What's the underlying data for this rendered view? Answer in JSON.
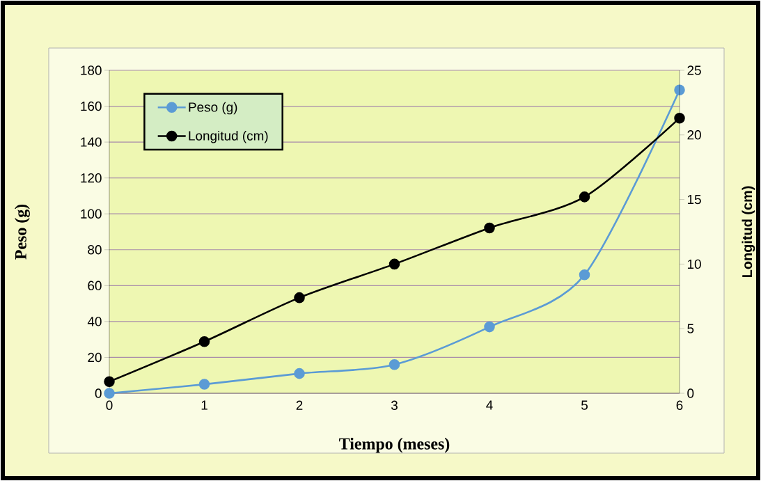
{
  "chart_data": {
    "type": "line",
    "xlabel": "Tiempo (meses)",
    "ylabel": "Peso (g)",
    "y2label": "Longitud (cm)",
    "x": [
      0,
      1,
      2,
      3,
      4,
      5,
      6
    ],
    "xlim": [
      0,
      6
    ],
    "xticks": [
      0,
      1,
      2,
      3,
      4,
      5,
      6
    ],
    "ylim": [
      0,
      180
    ],
    "yticks": [
      0,
      20,
      40,
      60,
      80,
      100,
      120,
      140,
      160,
      180
    ],
    "y2lim": [
      0,
      25
    ],
    "y2ticks": [
      0,
      5,
      10,
      15,
      20,
      25
    ],
    "series": [
      {
        "name": "Peso (g)",
        "color": "#5b9bd5",
        "values": [
          0,
          5,
          11,
          16,
          37,
          66,
          169
        ]
      },
      {
        "name": "Longitud (cm)",
        "color": "#000000",
        "axis": "y2",
        "values": [
          0.9,
          4.0,
          7.4,
          10.0,
          12.8,
          15.2,
          21.3
        ]
      }
    ],
    "grid": "y",
    "legend": "top left",
    "marker": "circle"
  }
}
